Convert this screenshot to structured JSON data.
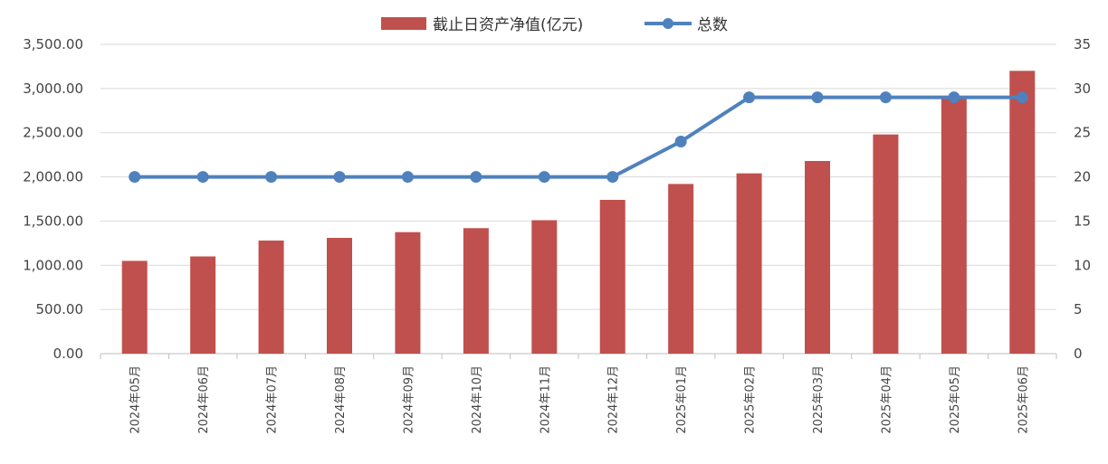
{
  "chart_data": {
    "type": "bar",
    "categories": [
      "2024年05月",
      "2024年06月",
      "2024年07月",
      "2024年08月",
      "2024年09月",
      "2024年10月",
      "2024年11月",
      "2024年12月",
      "2025年01月",
      "2025年02月",
      "2025年03月",
      "2025年04月",
      "2025年05月",
      "2025年06月"
    ],
    "series": [
      {
        "name": "截止日资产净值(亿元)",
        "type": "bar",
        "axis": "left",
        "color": "#C0504D",
        "values": [
          1050,
          1100,
          1280,
          1310,
          1375,
          1420,
          1510,
          1740,
          1920,
          2040,
          2180,
          2480,
          2890,
          3200
        ]
      },
      {
        "name": "总数",
        "type": "line",
        "axis": "right",
        "color": "#4F81BD",
        "values": [
          20,
          20,
          20,
          20,
          20,
          20,
          20,
          20,
          24,
          29,
          29,
          29,
          29,
          29
        ]
      }
    ],
    "y_left": {
      "ylim": [
        0,
        3500
      ],
      "ticks": [
        "0.00",
        "500.00",
        "1,000.00",
        "1,500.00",
        "2,000.00",
        "2,500.00",
        "3,000.00",
        "3,500.00"
      ]
    },
    "y_right": {
      "ylim": [
        0,
        35
      ],
      "ticks": [
        "0",
        "5",
        "10",
        "15",
        "20",
        "25",
        "30",
        "35"
      ]
    },
    "grid": true,
    "legend_position": "top-center"
  }
}
